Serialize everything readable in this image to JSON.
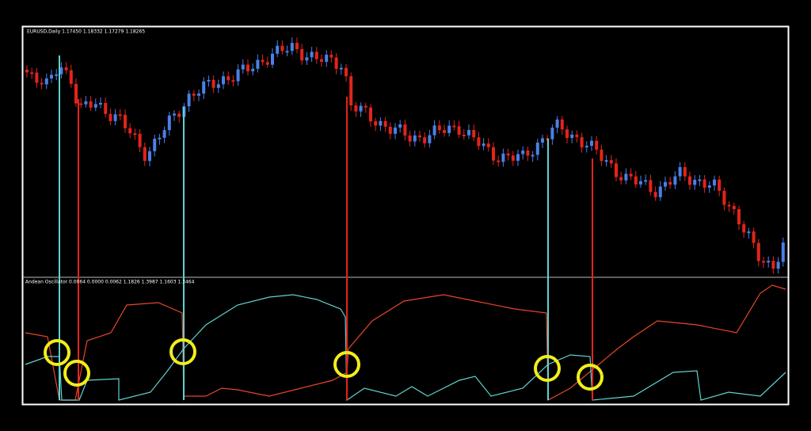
{
  "main_panel": {
    "header": "EURUSD,Daily  1.17450 1.18332 1.17279 1.18265"
  },
  "indicator_panel": {
    "header": "Andean Oscillator  0.0064 0.0000 0.0062 1.1826 1.3987 1.1603 1.3464"
  }
}
